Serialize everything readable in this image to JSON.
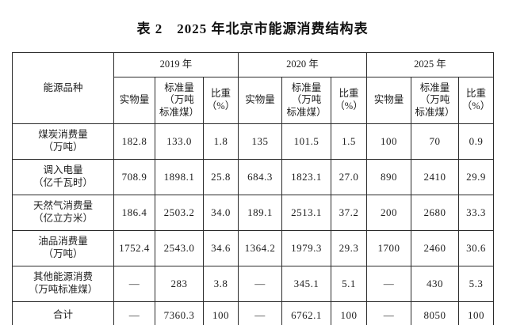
{
  "title": "表 2　2025 年北京市能源消费结构表",
  "table": {
    "corner_header": "能源品种",
    "year_headers": [
      "2019 年",
      "2020 年",
      "2025 年"
    ],
    "sub_headers": [
      "实物量",
      "标准量\n（万吨\n标准煤）",
      "比重\n（%）"
    ],
    "rows": [
      {
        "label": "煤炭消费量\n（万吨）",
        "values": [
          "182.8",
          "133.0",
          "1.8",
          "135",
          "101.5",
          "1.5",
          "100",
          "70",
          "0.9"
        ]
      },
      {
        "label": "调入电量\n（亿千瓦时）",
        "values": [
          "708.9",
          "1898.1",
          "25.8",
          "684.3",
          "1823.1",
          "27.0",
          "890",
          "2410",
          "29.9"
        ]
      },
      {
        "label": "天然气消费量\n（亿立方米）",
        "values": [
          "186.4",
          "2503.2",
          "34.0",
          "189.1",
          "2513.1",
          "37.2",
          "200",
          "2680",
          "33.3"
        ]
      },
      {
        "label": "油品消费量\n（万吨）",
        "values": [
          "1752.4",
          "2543.0",
          "34.6",
          "1364.2",
          "1979.3",
          "29.3",
          "1700",
          "2460",
          "30.6"
        ]
      },
      {
        "label": "其他能源消费\n（万吨标准煤）",
        "values": [
          "—",
          "283",
          "3.8",
          "—",
          "345.1",
          "5.1",
          "—",
          "430",
          "5.3"
        ]
      },
      {
        "label": "合计",
        "values": [
          "—",
          "7360.3",
          "100",
          "—",
          "6762.1",
          "100",
          "—",
          "8050",
          "100"
        ]
      }
    ],
    "total_row_label": "合计",
    "text_color": "#1c1c1c",
    "border_color": "#2b2b2b"
  }
}
